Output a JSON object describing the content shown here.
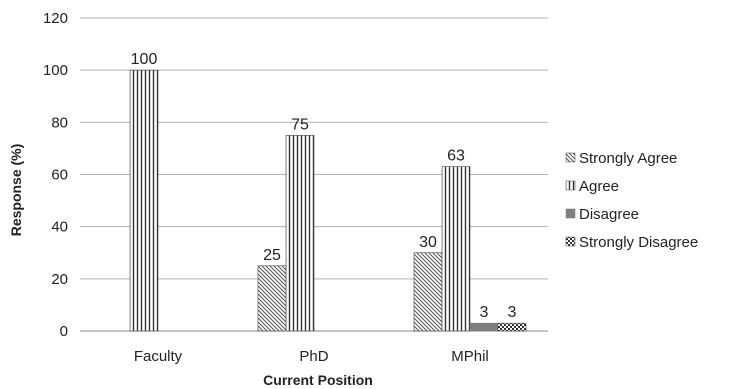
{
  "chart_data": {
    "type": "bar",
    "categories": [
      "Faculty",
      "PhD",
      "MPhil"
    ],
    "series": [
      {
        "name": "Strongly Agree",
        "values": [
          null,
          25,
          30
        ],
        "pattern": "diagonal-hatch",
        "color": "#555555"
      },
      {
        "name": "Agree",
        "values": [
          100,
          75,
          63
        ],
        "pattern": "vertical-lines",
        "color": "#333333"
      },
      {
        "name": "Disagree",
        "values": [
          null,
          null,
          3
        ],
        "pattern": "solid",
        "color": "#7f7f7f"
      },
      {
        "name": "Strongly Disagree",
        "values": [
          null,
          null,
          3
        ],
        "pattern": "checker",
        "color": "#333333"
      }
    ],
    "data_labels": [
      [
        "",
        "100",
        "",
        ""
      ],
      [
        "25",
        "75",
        "",
        ""
      ],
      [
        "30",
        "63",
        "3",
        "3"
      ]
    ],
    "xlabel": "Current Position",
    "ylabel": "Response (%)",
    "ylim": [
      0,
      120
    ],
    "yticks": [
      "0",
      "20",
      "40",
      "60",
      "80",
      "100",
      "120"
    ],
    "grid": true,
    "legend_position": "right"
  }
}
